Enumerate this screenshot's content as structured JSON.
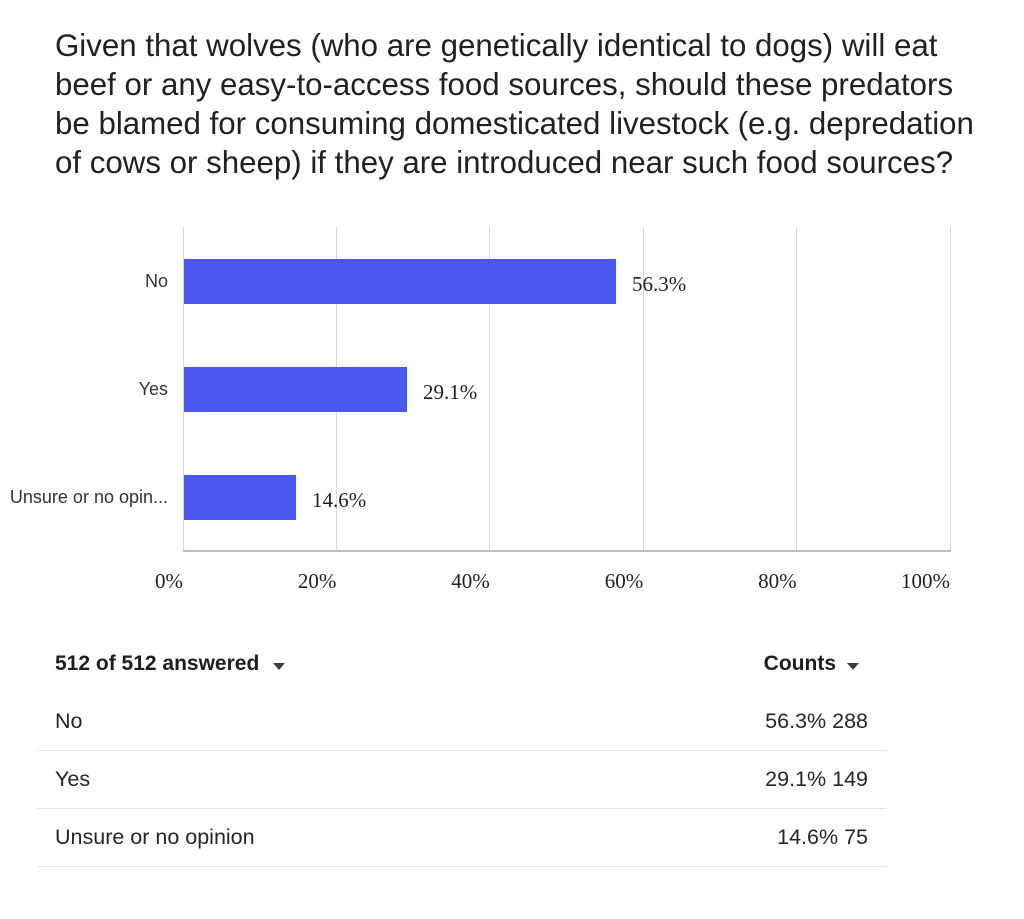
{
  "question": {
    "title": "Given that wolves (who are genetically identical to dogs) will eat beef or any easy-to-access food sources, should these predators be blamed for consuming domesticated livestock (e.g. depredation of cows or sheep) if they are introduced near such food sources?"
  },
  "chart_data": {
    "type": "bar",
    "orientation": "horizontal",
    "title": "",
    "xlabel": "",
    "ylabel": "",
    "categories": [
      "No",
      "Yes",
      "Unsure or no opinion"
    ],
    "category_display_labels": [
      "No",
      "Yes",
      "Unsure or no opin..."
    ],
    "values": [
      56.3,
      29.1,
      14.6
    ],
    "value_labels": [
      "56.3%",
      "29.1%",
      "14.6%"
    ],
    "xlim": [
      0,
      100
    ],
    "x_tick_labels": [
      "0%",
      "20%",
      "40%",
      "60%",
      "80%",
      "100%"
    ],
    "grid": true,
    "legend": false,
    "bar_color": "#4a57ef"
  },
  "table": {
    "header": {
      "answered_label": "512 of 512 answered",
      "counts_label": "Counts"
    },
    "rows": [
      {
        "label": "No",
        "percent": "56.3%",
        "count": "288"
      },
      {
        "label": "Yes",
        "percent": "29.1%",
        "count": "149"
      },
      {
        "label": "Unsure or no opinion",
        "percent": "14.6%",
        "count": "75"
      }
    ]
  },
  "colors": {
    "bar": "#4a57ef",
    "gridline": "#d8d8d8",
    "axis_line": "#b9bec4",
    "separator": "#e4e4e4",
    "text": "#212121",
    "background": "#ffffff"
  }
}
